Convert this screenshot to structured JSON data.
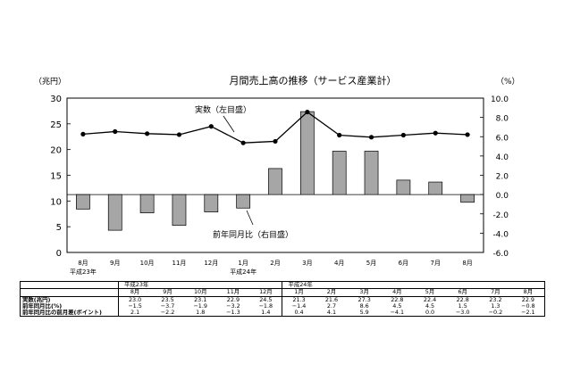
{
  "chart_data": {
    "type": "bar+line",
    "title": "月間売上高の推移（サービス産業計）",
    "ylabel_left": "（兆円）",
    "ylabel_right": "（%）",
    "ylim_left": [
      0,
      30
    ],
    "yticks_left": [
      "0",
      "5",
      "10",
      "15",
      "20",
      "25",
      "30"
    ],
    "ylim_right": [
      -6.0,
      10.0
    ],
    "yticks_right": [
      "-6.0",
      "-4.0",
      "-2.0",
      "0.0",
      "2.0",
      "4.0",
      "6.0",
      "8.0",
      "10.0"
    ],
    "categories": [
      "8月",
      "9月",
      "10月",
      "11月",
      "12月",
      "1月",
      "2月",
      "3月",
      "4月",
      "5月",
      "6月",
      "7月",
      "8月"
    ],
    "era_labels": [
      {
        "index": 0,
        "label": "平成23年"
      },
      {
        "index": 5,
        "label": "平成24年"
      }
    ],
    "series": [
      {
        "name": "実数（左目盛）",
        "type": "line",
        "axis": "left",
        "values": [
          23.0,
          23.5,
          23.1,
          22.9,
          24.5,
          21.3,
          21.6,
          27.3,
          22.8,
          22.4,
          22.8,
          23.2,
          22.9
        ]
      },
      {
        "name": "前年同月比（右目盛）",
        "type": "bar",
        "axis": "right",
        "values": [
          -1.5,
          -3.7,
          -1.9,
          -3.2,
          -1.8,
          -1.4,
          2.7,
          8.6,
          4.5,
          4.5,
          1.5,
          1.3,
          -0.8
        ]
      }
    ],
    "grid": false,
    "legend": "inline-annotations"
  },
  "table": {
    "era1": "平成23年",
    "era2": "平成24年",
    "months": [
      "8月",
      "9月",
      "10月",
      "11月",
      "12月",
      "1月",
      "2月",
      "3月",
      "4月",
      "5月",
      "6月",
      "7月",
      "8月"
    ],
    "rows": [
      {
        "label": "実数(兆円)",
        "values": [
          "23.0",
          "23.5",
          "23.1",
          "22.9",
          "24.5",
          "21.3",
          "21.6",
          "27.3",
          "22.8",
          "22.4",
          "22.8",
          "23.2",
          "22.9"
        ]
      },
      {
        "label": "前年同月比(%)",
        "values": [
          "−1.5",
          "−3.7",
          "−1.9",
          "−3.2",
          "−1.8",
          "−1.4",
          "2.7",
          "8.6",
          "4.5",
          "4.5",
          "1.5",
          "1.3",
          "−0.8"
        ]
      },
      {
        "label": "前年同月比の前月差(ポイント)",
        "values": [
          "2.1",
          "−2.2",
          "1.8",
          "−1.3",
          "1.4",
          "0.4",
          "4.1",
          "5.9",
          "−4.1",
          "0.0",
          "−3.0",
          "−0.2",
          "−2.1"
        ]
      }
    ]
  }
}
